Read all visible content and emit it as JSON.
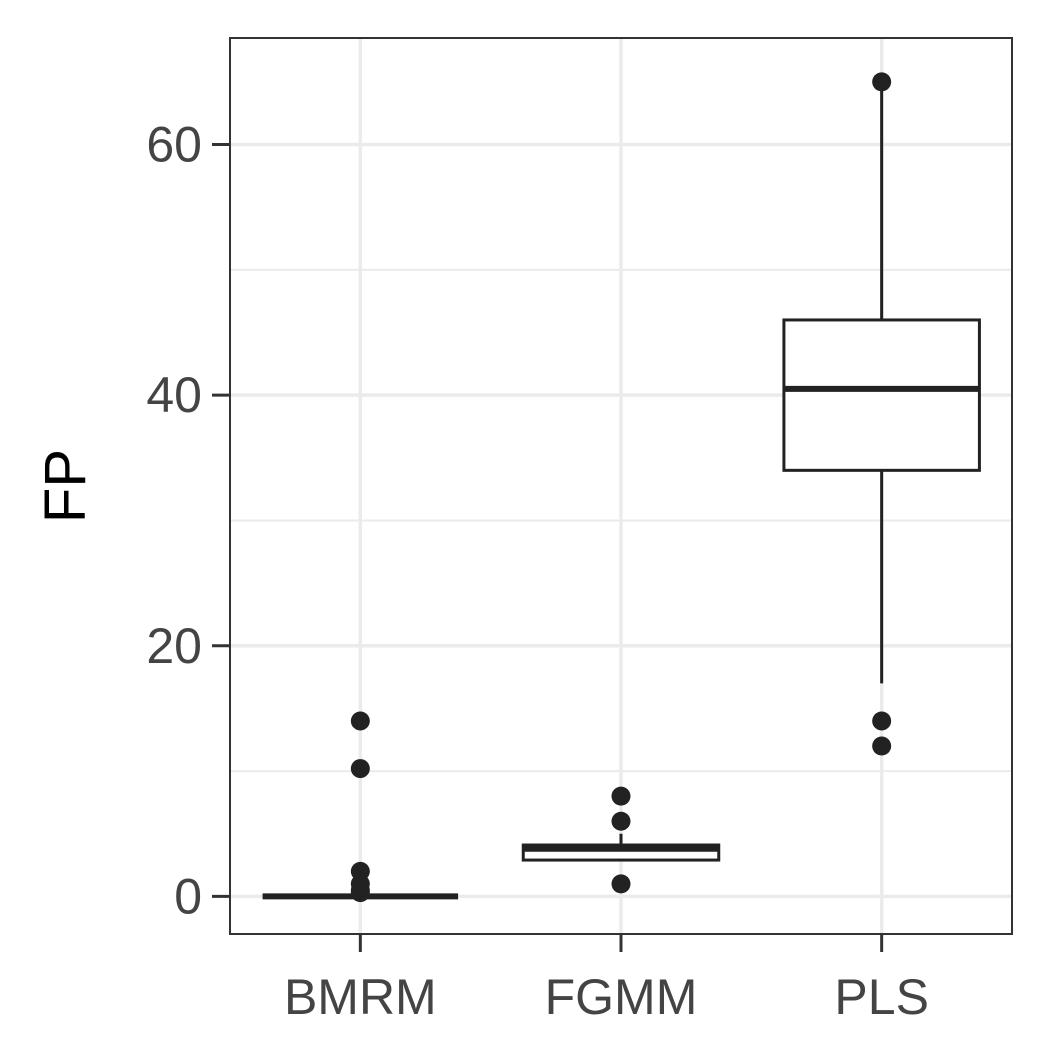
{
  "chart_data": {
    "type": "boxplot",
    "title": "",
    "xlabel": "",
    "ylabel": "FP",
    "ylim": [
      -3,
      68.5
    ],
    "grid": true,
    "y_ticks": [
      0,
      20,
      40,
      60
    ],
    "y_minor_ticks": [
      10,
      30,
      50
    ],
    "categories": [
      "BMRM",
      "FGMM",
      "PLS"
    ],
    "series": [
      {
        "category": "BMRM",
        "whisker_low": 0,
        "q1": 0,
        "median": 0,
        "q3": 0,
        "whisker_high": 0,
        "outliers": [
          14,
          10.2,
          2,
          1,
          0.5,
          0.3
        ]
      },
      {
        "category": "FGMM",
        "whisker_low": 2.9,
        "q1": 2.9,
        "median": 3.8,
        "q3": 4.1,
        "whisker_high": 5,
        "outliers": [
          8,
          6,
          1
        ]
      },
      {
        "category": "PLS",
        "whisker_low": 17,
        "q1": 34,
        "median": 40.5,
        "q3": 46,
        "whisker_high": 65,
        "outliers": [
          65,
          14,
          12
        ]
      }
    ],
    "colors": {
      "panel_border": "#333333",
      "grid": "#ebebeb",
      "box": "#222222",
      "tick_text": "#444444"
    }
  }
}
